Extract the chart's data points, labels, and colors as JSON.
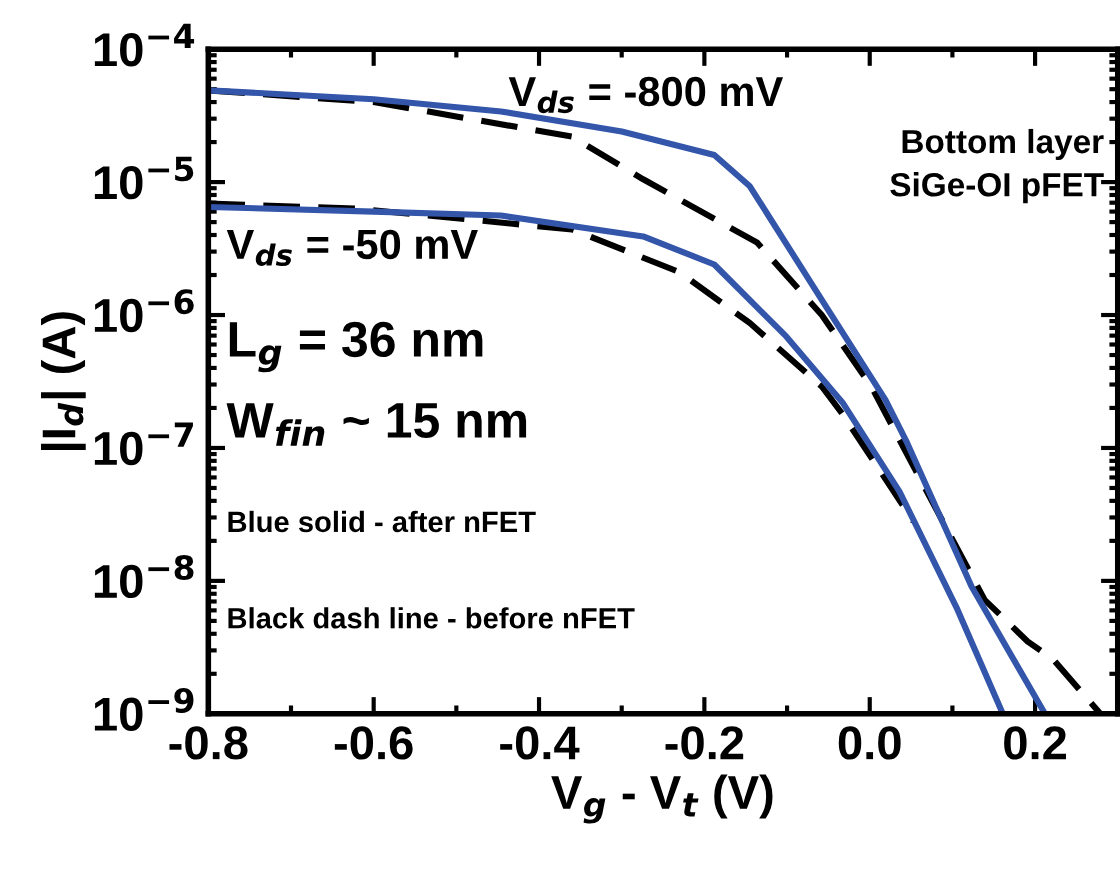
{
  "chart_data": {
    "type": "line",
    "xlabel": "V$_{g}$ - V$_{t}$ (V)",
    "ylabel": "|I$_{d}$| (A)",
    "log": "y",
    "grid": false,
    "legend": false,
    "marker": "none",
    "xlim": [
      -0.8,
      0.3
    ],
    "xticks": [
      {
        "value": -0.8,
        "label": "-0.8"
      },
      {
        "value": -0.6,
        "label": "-0.6"
      },
      {
        "value": -0.4,
        "label": "-0.4"
      },
      {
        "value": -0.2,
        "label": "-0.2"
      },
      {
        "value": 0.0,
        "label": "0.0"
      },
      {
        "value": 0.2,
        "label": "0.2"
      }
    ],
    "ylim": [
      1e-09,
      0.0001
    ],
    "yticks": [
      {
        "value": 1e-09,
        "label": "10$^{−9}$"
      },
      {
        "value": 1e-08,
        "label": "10$^{−8}$"
      },
      {
        "value": 1e-07,
        "label": "10$^{−7}$"
      },
      {
        "value": 1e-06,
        "label": "10$^{−6}$"
      },
      {
        "value": 1e-05,
        "label": "10$^{−5}$"
      },
      {
        "value": 0.0001,
        "label": "10$^{−4}$"
      }
    ],
    "annotations": [
      "V$_{ds}$ = -800 mV",
      "Bottom layer\nSiGe-OI pFET",
      "V$_{ds}$ = -50 mV",
      "L$_{g}$ = 36 nm",
      "W$_{fin}$ ~ 15 nm",
      "Blue solid - after nFET",
      "Black dash line - before nFET"
    ],
    "series": [
      {
        "color": "#000000",
        "line_style": "dashed",
        "x": [
          -0.8,
          -0.6,
          -0.36,
          -0.274,
          -0.136,
          -0.058,
          0.002,
          0.06,
          0.139,
          0.191,
          0.221,
          0.279
        ],
        "values": [
          4.9e-05,
          4e-05,
          2.2e-05,
          1.05e-05,
          3.5e-06,
          1e-06,
          2.9e-07,
          6e-08,
          7.2e-09,
          3.5e-09,
          2.6e-09,
          1e-09
        ]
      },
      {
        "color": "#000000",
        "line_style": "dashed",
        "x": [
          -0.8,
          -0.618,
          -0.36,
          -0.23,
          -0.145,
          -0.058,
          -0.033,
          0.053
        ],
        "values": [
          6.9e-06,
          6.3e-06,
          4.4e-06,
          2.1e-06,
          8.7e-07,
          2.9e-07,
          1.8e-07,
          2.8e-08
        ]
      },
      {
        "color": "#3355aa",
        "line_style": "solid",
        "x": [
          -0.8,
          -0.6,
          -0.446,
          -0.3,
          -0.188,
          -0.145,
          -0.058,
          0.019,
          0.045,
          0.123,
          0.212
        ],
        "values": [
          4.9e-05,
          4.2e-05,
          3.4e-05,
          2.4e-05,
          1.6e-05,
          9.3e-06,
          1.3e-06,
          2.3e-07,
          1.1e-07,
          9.1e-09,
          1e-09
        ]
      },
      {
        "color": "#3355aa",
        "line_style": "solid",
        "x": [
          -0.8,
          -0.6,
          -0.446,
          -0.274,
          -0.188,
          -0.101,
          -0.033,
          0.036,
          0.105,
          0.161
        ],
        "values": [
          6.5e-06,
          6e-06,
          5.6e-06,
          3.9e-06,
          2.4e-06,
          6.9e-07,
          2.2e-07,
          4.7e-08,
          6.3e-09,
          1e-09
        ]
      }
    ]
  }
}
